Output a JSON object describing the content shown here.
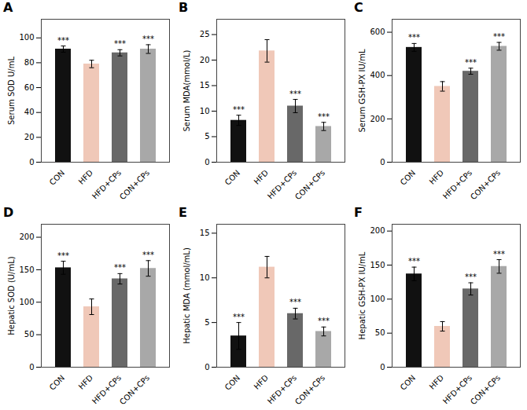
{
  "chart_data": [
    {
      "type": "bar",
      "title": "A",
      "y_label": "Serum SOD U/mL",
      "categories": [
        "CON",
        "HFD",
        "HFD+CPs",
        "CON+CPs"
      ],
      "values": [
        91,
        79,
        88,
        91
      ],
      "errors": [
        2.5,
        3.0,
        2.5,
        3.5
      ],
      "colors": [
        "#111111",
        "#f0c8b8",
        "#686868",
        "#a8a8a8"
      ],
      "ylim": [
        0,
        115
      ],
      "yticks": [
        0,
        20,
        40,
        60,
        80,
        100
      ],
      "annotations": [
        {
          "category": "CON",
          "text": "***"
        },
        {
          "category": "HFD+CPs",
          "text": "***"
        },
        {
          "category": "CON+CPs",
          "text": "***"
        }
      ]
    },
    {
      "type": "bar",
      "title": "B",
      "y_label": "Serum MDA(mmol/L)",
      "categories": [
        "CON",
        "HFD",
        "HFD+CPs",
        "CON+CPs"
      ],
      "values": [
        8.2,
        21.8,
        11.0,
        7.0
      ],
      "errors": [
        1.0,
        2.2,
        1.3,
        0.8
      ],
      "colors": [
        "#111111",
        "#f0c8b8",
        "#686868",
        "#a8a8a8"
      ],
      "ylim": [
        0,
        28
      ],
      "yticks": [
        0,
        5,
        10,
        15,
        20,
        25
      ],
      "annotations": [
        {
          "category": "CON",
          "text": "***"
        },
        {
          "category": "HFD+CPs",
          "text": "***"
        },
        {
          "category": "CON+CPs",
          "text": "***"
        }
      ]
    },
    {
      "type": "bar",
      "title": "C",
      "y_label": "Serum GSH-PX IU/mL",
      "categories": [
        "CON",
        "HFD",
        "HFD+CPs",
        "CON+CPs"
      ],
      "values": [
        530,
        350,
        420,
        535
      ],
      "errors": [
        18,
        22,
        14,
        18
      ],
      "colors": [
        "#111111",
        "#f0c8b8",
        "#686868",
        "#a8a8a8"
      ],
      "ylim": [
        0,
        660
      ],
      "yticks": [
        0,
        200,
        400,
        600
      ],
      "annotations": [
        {
          "category": "CON",
          "text": "***"
        },
        {
          "category": "HFD+CPs",
          "text": "***"
        },
        {
          "category": "CON+CPs",
          "text": "***"
        }
      ]
    },
    {
      "type": "bar",
      "title": "D",
      "y_label": "Hepatic SOD (U/mL)",
      "categories": [
        "CON",
        "HFD",
        "HFD+CPs",
        "CON+CPs"
      ],
      "values": [
        153,
        93,
        136,
        152
      ],
      "errors": [
        10,
        12,
        8,
        12
      ],
      "colors": [
        "#111111",
        "#f0c8b8",
        "#686868",
        "#a8a8a8"
      ],
      "ylim": [
        0,
        220
      ],
      "yticks": [
        0,
        50,
        100,
        150,
        200
      ],
      "annotations": [
        {
          "category": "CON",
          "text": "***"
        },
        {
          "category": "HFD+CPs",
          "text": "***"
        },
        {
          "category": "CON+CPs",
          "text": "***"
        }
      ]
    },
    {
      "type": "bar",
      "title": "E",
      "y_label": "Hepatic MDA (mmol/mL)",
      "categories": [
        "CON",
        "HFD",
        "HFD+CPs",
        "CON+CPs"
      ],
      "values": [
        3.5,
        11.2,
        6.0,
        4.0
      ],
      "errors": [
        1.5,
        1.2,
        0.6,
        0.5
      ],
      "colors": [
        "#111111",
        "#f0c8b8",
        "#686868",
        "#a8a8a8"
      ],
      "ylim": [
        0,
        16
      ],
      "yticks": [
        0,
        5,
        10,
        15
      ],
      "annotations": [
        {
          "category": "CON",
          "text": "***"
        },
        {
          "category": "HFD+CPs",
          "text": "***"
        },
        {
          "category": "CON+CPs",
          "text": "***"
        }
      ]
    },
    {
      "type": "bar",
      "title": "F",
      "y_label": "Hepatic GSH-PX IU/mL",
      "categories": [
        "CON",
        "HFD",
        "HFD+CPs",
        "CON+CPs"
      ],
      "values": [
        137,
        60,
        115,
        148
      ],
      "errors": [
        10,
        7,
        9,
        10
      ],
      "colors": [
        "#111111",
        "#f0c8b8",
        "#686868",
        "#a8a8a8"
      ],
      "ylim": [
        0,
        210
      ],
      "yticks": [
        0,
        50,
        100,
        150,
        200
      ],
      "annotations": [
        {
          "category": "CON",
          "text": "***"
        },
        {
          "category": "HFD+CPs",
          "text": "***"
        },
        {
          "category": "CON+CPs",
          "text": "***"
        }
      ]
    }
  ]
}
